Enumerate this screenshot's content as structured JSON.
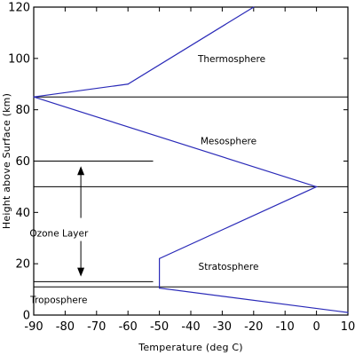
{
  "chart_data": {
    "type": "line",
    "xlabel": "Temperature (deg C)",
    "ylabel": "Height above Surface (km)",
    "xlim": [
      -90,
      10
    ],
    "ylim": [
      0,
      120
    ],
    "x_ticks": [
      -90,
      -80,
      -70,
      -60,
      -50,
      -40,
      -30,
      -20,
      -10,
      0,
      10
    ],
    "y_ticks": [
      0,
      20,
      40,
      60,
      80,
      100,
      120
    ],
    "grid": false,
    "series_color": "#2a2ab8",
    "axis_color": "#000000",
    "series": [
      {
        "points": [
          [
            10,
            1
          ],
          [
            -50,
            10.5
          ],
          [
            -50,
            22
          ],
          [
            0,
            50
          ],
          [
            -90,
            85
          ],
          [
            -60,
            90
          ],
          [
            -20,
            120
          ]
        ]
      }
    ],
    "boundary_lines": [
      {
        "y": 85,
        "x_range": [
          -90,
          10
        ]
      },
      {
        "y": 50,
        "x_range": [
          -90,
          10
        ]
      },
      {
        "y": 11,
        "x_range": [
          -90,
          10
        ]
      }
    ],
    "ozone_lines": [
      {
        "y": 60,
        "x_range": [
          -90,
          -52
        ]
      },
      {
        "y": 13,
        "x_range": [
          -90,
          -52
        ]
      }
    ],
    "ozone_arrow": {
      "x": -75,
      "y_from": 15,
      "y_to": 58,
      "label_y": 33
    },
    "annotations": [
      {
        "text": "Thermosphere",
        "x": -27,
        "y": 100
      },
      {
        "text": "Mesosphere",
        "x": -28,
        "y": 68
      },
      {
        "text": "Ozone Layer",
        "x": -82,
        "y": 32
      },
      {
        "text": "Stratosphere",
        "x": -28,
        "y": 19
      },
      {
        "text": "Troposphere",
        "x": -82,
        "y": 6
      }
    ]
  }
}
